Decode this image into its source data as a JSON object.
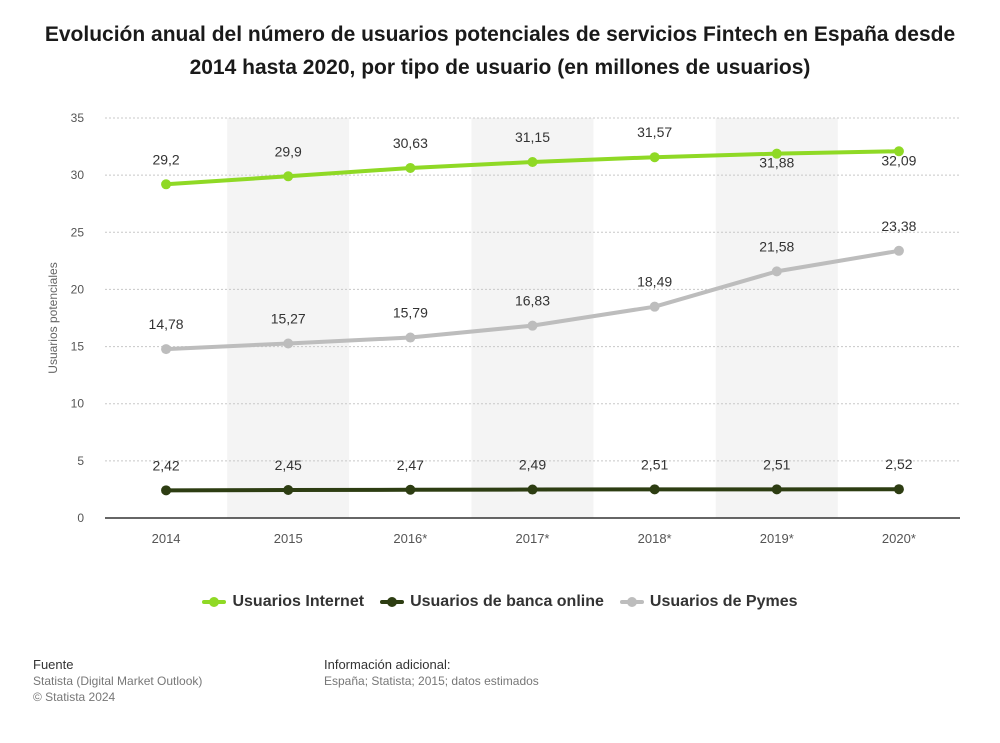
{
  "title": "Evolución anual del número de usuarios potenciales de servicios Fintech en España desde 2014 hasta 2020, por tipo de usuario (en millones de usuarios)",
  "chart_data": {
    "type": "line",
    "title": "Evolución anual del número de usuarios potenciales de servicios Fintech en España desde 2014 hasta 2020, por tipo de usuario (en millones de usuarios)",
    "xlabel": "",
    "ylabel": "Usuarios potenciales",
    "ylim": [
      0,
      35
    ],
    "yticks": [
      "0",
      "5",
      "10",
      "15",
      "20",
      "25",
      "30",
      "35"
    ],
    "categories": [
      "2014",
      "2015",
      "2016*",
      "2017*",
      "2018*",
      "2019*",
      "2020*"
    ],
    "grid": true,
    "legend_position": "bottom",
    "series": [
      {
        "name": "Usuarios Internet",
        "color": "#8fd925",
        "values": [
          29.2,
          29.9,
          30.63,
          31.15,
          31.57,
          31.88,
          32.09
        ],
        "labels": [
          "29,2",
          "29,9",
          "30,63",
          "31,15",
          "31,57",
          "31,88",
          "32,09"
        ],
        "label_positions": [
          "above",
          "above",
          "above",
          "above",
          "above",
          "below",
          "below"
        ]
      },
      {
        "name": "Usuarios de banca online",
        "color": "#2d3d12",
        "values": [
          2.42,
          2.45,
          2.47,
          2.49,
          2.51,
          2.51,
          2.52
        ],
        "labels": [
          "2,42",
          "2,45",
          "2,47",
          "2,49",
          "2,51",
          "2,51",
          "2,52"
        ],
        "label_positions": [
          "above",
          "above",
          "above",
          "above",
          "above",
          "above",
          "above"
        ]
      },
      {
        "name": "Usuarios de Pymes",
        "color": "#bdbdbd",
        "values": [
          14.78,
          15.27,
          15.79,
          16.83,
          18.49,
          21.58,
          23.38
        ],
        "labels": [
          "14,78",
          "15,27",
          "15,79",
          "16,83",
          "18,49",
          "21,58",
          "23,38"
        ],
        "label_positions": [
          "above",
          "above",
          "above",
          "above",
          "above",
          "above",
          "above"
        ]
      }
    ]
  },
  "footer": {
    "source_heading": "Fuente",
    "source_line1": "Statista (Digital Market Outlook)",
    "source_line2": "© Statista 2024",
    "info_heading": "Información adicional:",
    "info_text": "España; Statista; 2015; datos estimados"
  }
}
